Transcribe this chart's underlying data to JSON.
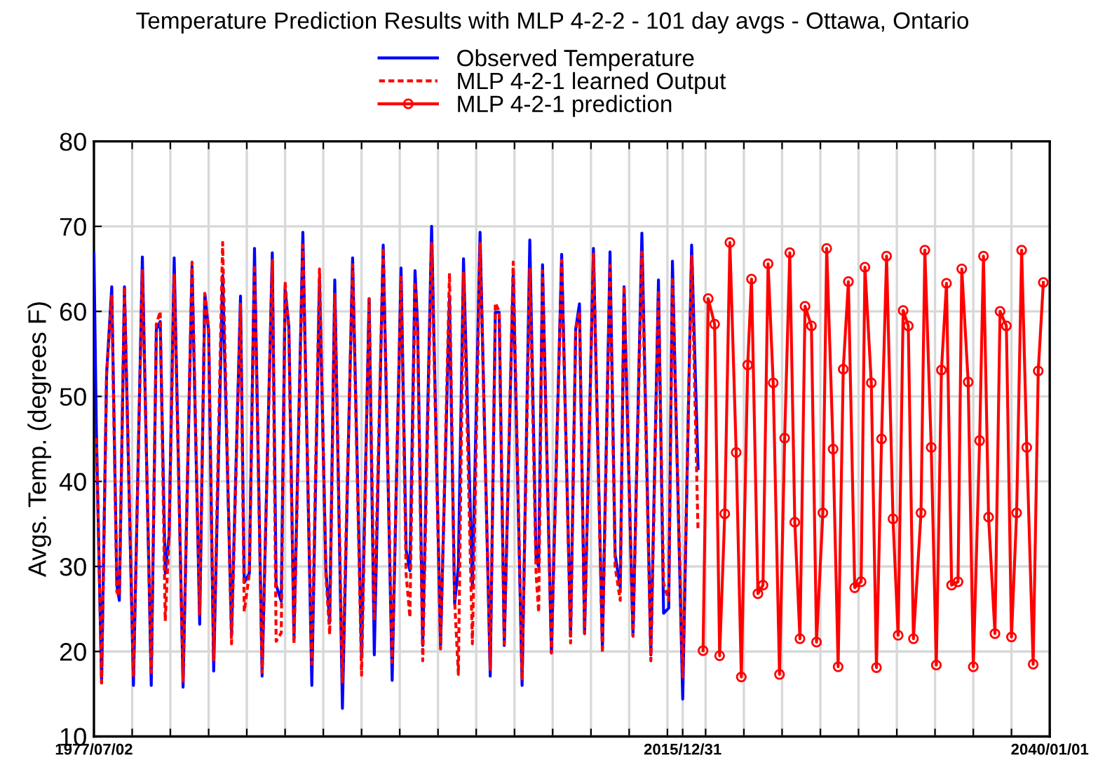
{
  "chart_data": {
    "type": "line",
    "title": "Temperature Prediction Results with MLP 4-2-2 - 101 day avgs - Ottawa, Ontario",
    "ylabel": "Avgs. Temp. (degrees F)",
    "xlim": [
      "1977-07-02",
      "2040-01-01"
    ],
    "xticks": [
      {
        "value": "1977-07-02",
        "label": "1977/07/02"
      },
      {
        "value": "1980-01",
        "label": null
      },
      {
        "value": "1982-07",
        "label": null
      },
      {
        "value": "1985-01",
        "label": null
      },
      {
        "value": "1987-07",
        "label": null
      },
      {
        "value": "1990-01",
        "label": null
      },
      {
        "value": "1992-07",
        "label": null
      },
      {
        "value": "1995-01",
        "label": null
      },
      {
        "value": "1997-07",
        "label": null
      },
      {
        "value": "2000-01",
        "label": null
      },
      {
        "value": "2002-07",
        "label": null
      },
      {
        "value": "2005-01",
        "label": null
      },
      {
        "value": "2007-07",
        "label": null
      },
      {
        "value": "2010-01",
        "label": null
      },
      {
        "value": "2012-07",
        "label": null
      },
      {
        "value": "2015-01",
        "label": null
      },
      {
        "value": "2015-12-31",
        "label": "2015/12/31"
      },
      {
        "value": "2017-07",
        "label": null
      },
      {
        "value": "2020-01",
        "label": null
      },
      {
        "value": "2022-07",
        "label": null
      },
      {
        "value": "2025-01",
        "label": null
      },
      {
        "value": "2027-07",
        "label": null
      },
      {
        "value": "2030-01",
        "label": null
      },
      {
        "value": "2032-07",
        "label": null
      },
      {
        "value": "2035-01",
        "label": null
      },
      {
        "value": "2037-07",
        "label": null
      },
      {
        "value": "2040-01-01",
        "label": "2040/01/01"
      }
    ],
    "ylim": [
      10,
      80
    ],
    "yticks": [
      10,
      20,
      30,
      40,
      50,
      60,
      70,
      80
    ],
    "grid": true,
    "legend": "top",
    "series": [
      {
        "name": "Observed Temperature",
        "color": "#0000ff",
        "line_style": "solid",
        "marker": "none",
        "x": [
          "1977-07-02",
          "1977-09",
          "1978-01",
          "1978-05",
          "1978-09",
          "1979-01",
          "1979-03",
          "1979-07",
          "1980-02",
          "1980-09",
          "1981-04",
          "1981-08",
          "1981-11",
          "1982-03",
          "1982-06",
          "1982-10",
          "1983-05",
          "1983-12",
          "1984-06",
          "1984-10",
          "1985-01",
          "1985-05",
          "1985-12",
          "1986-07",
          "1987-02",
          "1987-05",
          "1987-09",
          "1988-01",
          "1988-07",
          "1989-03",
          "1989-06",
          "1989-10",
          "1990-01",
          "1990-04",
          "1990-08",
          "1991-03",
          "1991-10",
          "1992-04",
          "1992-09",
          "1992-12",
          "1993-04",
          "1993-10",
          "1994-06",
          "1995-01",
          "1995-07",
          "1995-11",
          "1996-06",
          "1997-01",
          "1997-08",
          "1997-12",
          "1998-03",
          "1998-07",
          "1998-09",
          "1999-01",
          "1999-08",
          "2000-03",
          "2000-10",
          "2001-02",
          "2001-05",
          "2001-09",
          "2002-04",
          "2002-10",
          "2003-06",
          "2003-10",
          "2004-01",
          "2004-05",
          "2004-12",
          "2005-07",
          "2006-01",
          "2006-06",
          "2006-08",
          "2006-11",
          "2007-06",
          "2008-02",
          "2008-09",
          "2009-01",
          "2009-04",
          "2009-08",
          "2010-03",
          "2010-10",
          "2011-04",
          "2011-08",
          "2011-12",
          "2012-03",
          "2012-10",
          "2013-05",
          "2013-12",
          "2014-06",
          "2014-10",
          "2015-02",
          "2015-05",
          "2016-01",
          "2016-08",
          "2017-01"
        ],
        "values": [
          66.9,
          45.3,
          16.3,
          52.7,
          62.9,
          27.8,
          26.0,
          62.9,
          16.0,
          66.4,
          16.0,
          57.9,
          58.8,
          29.2,
          33.6,
          66.3,
          15.8,
          65.3,
          23.2,
          62.1,
          57.7,
          17.7,
          64.2,
          22.1,
          61.8,
          28.1,
          29.2,
          67.4,
          17.1,
          66.9,
          27.8,
          25.9,
          62.6,
          58.2,
          21.5,
          69.3,
          16.0,
          63.7,
          29.7,
          23.4,
          63.7,
          13.3,
          66.3,
          19.3,
          61.5,
          19.6,
          67.8,
          16.6,
          65.1,
          31.9,
          29.5,
          64.8,
          58.2,
          20.7,
          70.0,
          20.7,
          61.5,
          25.6,
          30.0,
          66.2,
          27.5,
          69.3,
          17.1,
          59.9,
          59.9,
          20.7,
          64.5,
          16.0,
          68.4,
          30.8,
          30.0,
          65.5,
          19.9,
          66.7,
          21.8,
          57.9,
          60.9,
          22.1,
          67.4,
          20.4,
          67.0,
          31.4,
          27.5,
          62.9,
          21.8,
          69.2,
          19.6,
          63.7,
          24.5,
          25.1,
          65.9,
          14.4,
          67.8,
          41.5
        ]
      },
      {
        "name": "MLP 4-2-1 learned Output",
        "color": "#ff0000",
        "line_style": "dotted",
        "marker": "none",
        "x": [
          "1977-09",
          "1978-01",
          "1978-05",
          "1978-09",
          "1979-01",
          "1979-03",
          "1979-07",
          "1980-02",
          "1980-09",
          "1981-04",
          "1981-08",
          "1981-11",
          "1982-03",
          "1982-06",
          "1982-10",
          "1983-05",
          "1983-12",
          "1984-06",
          "1984-10",
          "1985-01",
          "1985-05",
          "1985-12",
          "1986-07",
          "1987-02",
          "1987-05",
          "1987-09",
          "1988-01",
          "1988-07",
          "1989-03",
          "1989-06",
          "1989-10",
          "1990-01",
          "1990-04",
          "1990-08",
          "1991-03",
          "1991-10",
          "1992-04",
          "1992-09",
          "1992-12",
          "1993-04",
          "1993-10",
          "1994-06",
          "1995-01",
          "1995-07",
          "1995-11",
          "1996-06",
          "1997-01",
          "1997-08",
          "1997-12",
          "1998-03",
          "1998-07",
          "1998-09",
          "1999-01",
          "1999-08",
          "2000-03",
          "2000-10",
          "2001-02",
          "2001-05",
          "2001-09",
          "2002-04",
          "2002-10",
          "2003-06",
          "2003-10",
          "2004-01",
          "2004-05",
          "2004-12",
          "2005-07",
          "2006-01",
          "2006-06",
          "2006-08",
          "2006-11",
          "2007-06",
          "2008-02",
          "2008-09",
          "2009-01",
          "2009-04",
          "2009-08",
          "2010-03",
          "2010-10",
          "2011-04",
          "2011-08",
          "2011-12",
          "2012-03",
          "2012-10",
          "2013-05",
          "2013-12",
          "2014-06",
          "2014-10",
          "2015-02",
          "2015-05",
          "2016-01",
          "2016-08",
          "2017-01"
        ],
        "values": [
          45.1,
          16.3,
          52.7,
          61.8,
          27.0,
          26.5,
          62.9,
          17.0,
          64.8,
          17.5,
          58.5,
          60.0,
          23.6,
          33.6,
          64.3,
          16.5,
          65.8,
          24.4,
          62.1,
          57.7,
          19.0,
          68.1,
          20.9,
          61.0,
          24.7,
          29.2,
          65.5,
          17.5,
          66.0,
          21.2,
          22.2,
          63.5,
          57.5,
          20.9,
          67.8,
          18.5,
          65.0,
          29.0,
          22.0,
          62.0,
          16.4,
          65.5,
          17.2,
          61.5,
          23.6,
          67.5,
          18.7,
          64.0,
          29.0,
          24.0,
          63.5,
          57.2,
          18.9,
          68.0,
          20.3,
          64.5,
          26.0,
          17.3,
          64.5,
          20.9,
          68.0,
          17.9,
          61.0,
          60.0,
          20.9,
          65.8,
          16.6,
          65.0,
          29.0,
          24.6,
          64.8,
          19.8,
          66.0,
          21.0,
          58.0,
          60.0,
          22.1,
          66.9,
          19.8,
          65.4,
          30.0,
          26.0,
          63.0,
          21.8,
          67.0,
          18.9,
          62.5,
          28.0,
          26.0,
          64.0,
          17.0,
          66.5,
          34.1
        ]
      },
      {
        "name": "MLP 4-2-1 prediction",
        "color": "#ff0000",
        "line_style": "solid",
        "marker": "circle",
        "x": [
          "2017-05",
          "2017-09",
          "2018-02",
          "2018-06",
          "2018-10",
          "2019-02",
          "2019-07",
          "2019-11",
          "2020-04",
          "2020-07",
          "2020-12",
          "2021-04",
          "2021-08",
          "2021-12",
          "2022-05",
          "2022-09",
          "2023-01",
          "2023-05",
          "2023-09",
          "2024-01",
          "2024-06",
          "2024-10",
          "2025-03",
          "2025-06",
          "2025-11",
          "2026-03",
          "2026-07",
          "2026-11",
          "2027-04",
          "2027-09",
          "2027-12",
          "2028-05",
          "2028-09",
          "2029-01",
          "2029-05",
          "2029-10",
          "2030-02",
          "2030-06",
          "2030-10",
          "2031-02",
          "2031-08",
          "2031-11",
          "2032-04",
          "2032-08",
          "2032-12",
          "2033-04",
          "2033-08",
          "2034-01",
          "2034-04",
          "2034-09",
          "2035-01",
          "2035-06",
          "2035-09",
          "2036-01",
          "2036-06",
          "2036-10",
          "2037-03",
          "2037-07",
          "2037-11",
          "2038-03",
          "2038-07",
          "2038-12",
          "2039-04",
          "2039-08"
        ],
        "values": [
          20.1,
          61.5,
          58.5,
          19.5,
          36.2,
          68.1,
          43.4,
          17.0,
          53.7,
          63.8,
          26.8,
          27.8,
          65.6,
          51.6,
          17.3,
          45.1,
          66.9,
          35.2,
          21.5,
          60.6,
          58.3,
          21.1,
          36.3,
          67.4,
          43.8,
          18.2,
          53.2,
          63.5,
          27.5,
          28.2,
          65.2,
          51.6,
          18.1,
          45.0,
          66.5,
          35.6,
          21.9,
          60.1,
          58.3,
          21.5,
          36.3,
          67.2,
          44.0,
          18.4,
          53.1,
          63.3,
          27.8,
          28.2,
          65.0,
          51.7,
          18.2,
          44.8,
          66.5,
          35.8,
          22.1,
          60.0,
          58.3,
          21.7,
          36.3,
          67.2,
          44.0,
          18.5,
          53.0,
          63.4
        ]
      }
    ]
  }
}
